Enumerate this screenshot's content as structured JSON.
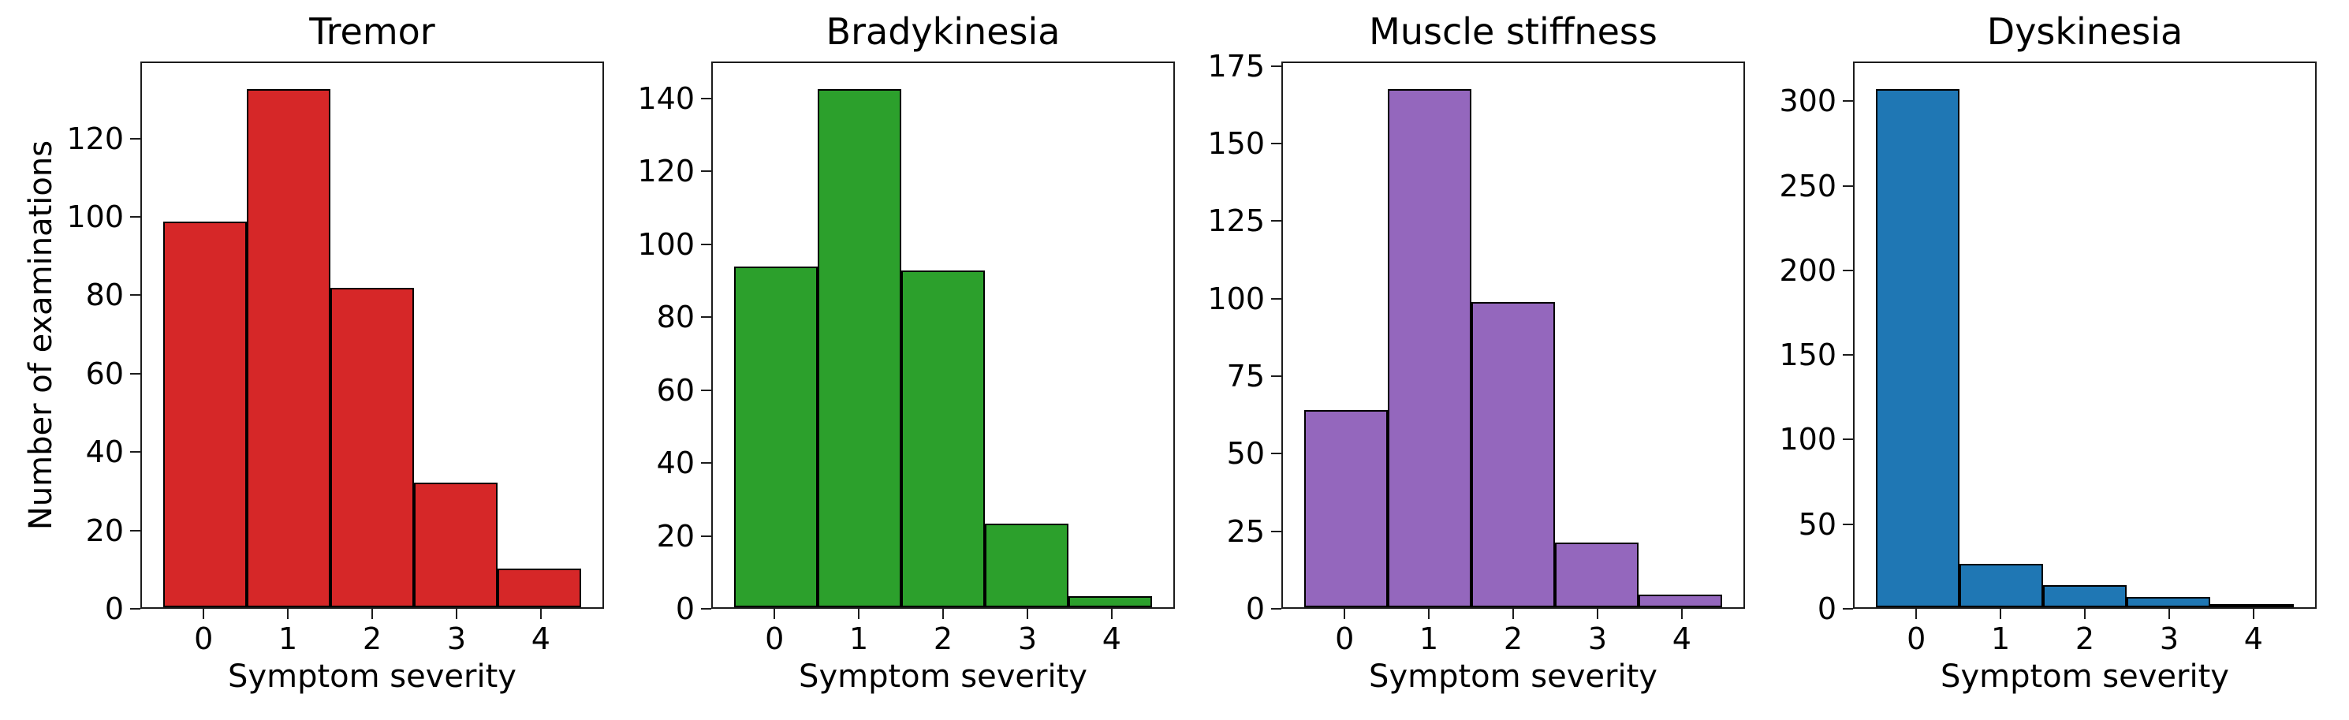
{
  "figure": {
    "background": "#ffffff",
    "shared_xlabel": "Symptom severity",
    "shared_ylabel": "Number of examinations"
  },
  "chart_data": [
    {
      "type": "bar",
      "title": "Tremor",
      "color": "#d62728",
      "edge_color": "#000000",
      "categories": [
        0,
        1,
        2,
        3,
        4
      ],
      "values": [
        99,
        133,
        82,
        32,
        10
      ],
      "xlabel": "Symptom severity",
      "ylabel": "Number of examinations",
      "yticks": [
        0,
        20,
        40,
        60,
        80,
        100,
        120
      ],
      "ylim": [
        0,
        139.65
      ],
      "xlim": [
        -0.75,
        4.75
      ],
      "grid": false,
      "legend": "none"
    },
    {
      "type": "bar",
      "title": "Bradykinesia",
      "color": "#2ca02c",
      "edge_color": "#000000",
      "categories": [
        0,
        1,
        2,
        3,
        4
      ],
      "values": [
        94,
        143,
        93,
        23,
        3
      ],
      "xlabel": "Symptom severity",
      "ylabel": "",
      "yticks": [
        0,
        20,
        40,
        60,
        80,
        100,
        120,
        140
      ],
      "ylim": [
        0,
        150.15
      ],
      "xlim": [
        -0.75,
        4.75
      ],
      "grid": false,
      "legend": "none"
    },
    {
      "type": "bar",
      "title": "Muscle stiffness",
      "color": "#9467bd",
      "edge_color": "#000000",
      "categories": [
        0,
        1,
        2,
        3,
        4
      ],
      "values": [
        64,
        168,
        99,
        21,
        4
      ],
      "xlabel": "Symptom severity",
      "ylabel": "",
      "yticks": [
        0,
        25,
        50,
        75,
        100,
        125,
        150,
        175
      ],
      "ylim": [
        0,
        176.4
      ],
      "xlim": [
        -0.75,
        4.75
      ],
      "grid": false,
      "legend": "none"
    },
    {
      "type": "bar",
      "title": "Dyskinesia",
      "color": "#1f77b4",
      "edge_color": "#000000",
      "categories": [
        0,
        1,
        2,
        3,
        4
      ],
      "values": [
        308,
        26,
        13,
        6,
        1
      ],
      "xlabel": "Symptom severity",
      "ylabel": "",
      "yticks": [
        0,
        50,
        100,
        150,
        200,
        250,
        300
      ],
      "ylim": [
        0,
        323.4
      ],
      "xlim": [
        -0.75,
        4.75
      ],
      "grid": false,
      "legend": "none"
    }
  ]
}
